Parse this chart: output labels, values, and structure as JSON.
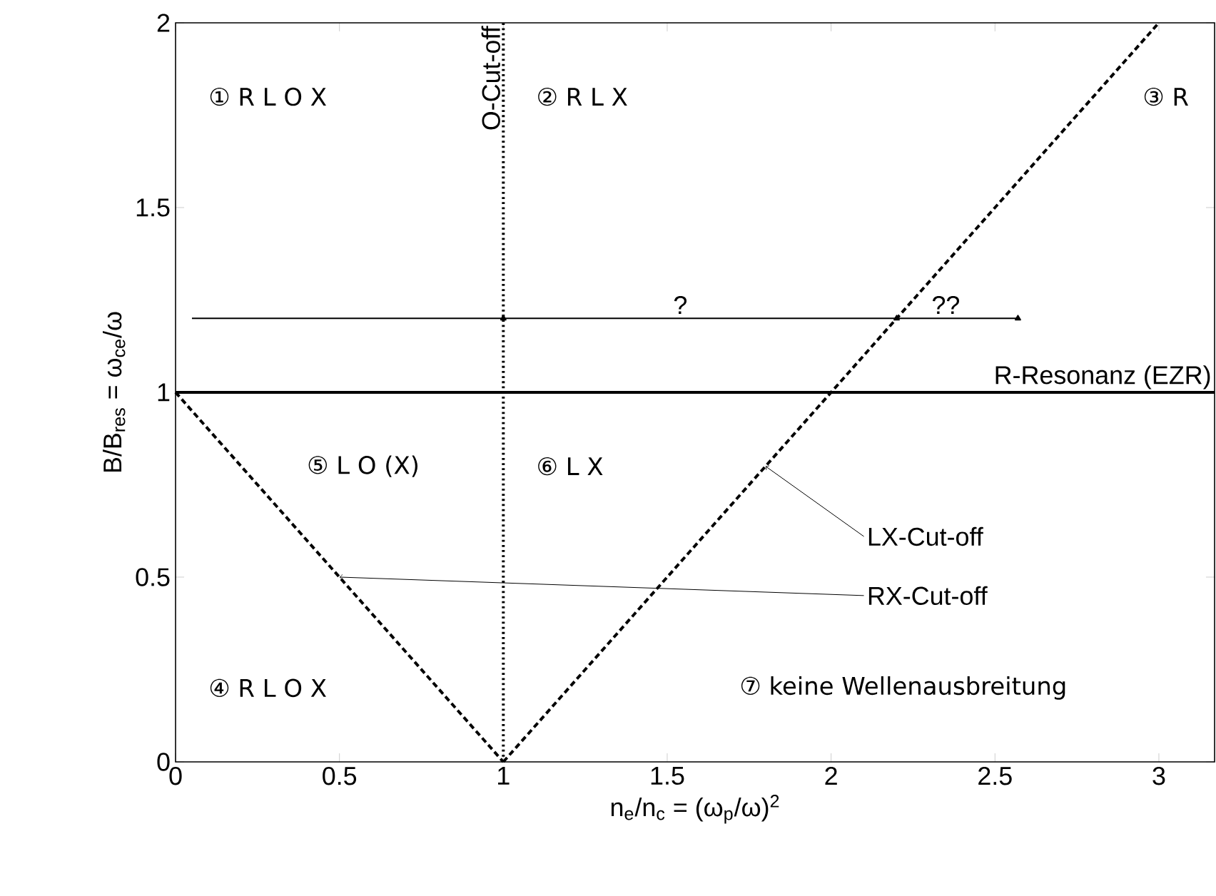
{
  "chart_data": {
    "type": "line",
    "xlabel": "n$_{e}$/n$_{c}$ = (ω$_{p}$/ω)$^{2}$",
    "ylabel": "B/B$_{res}$ = ω$_{ce}$/ω",
    "xlim": [
      0,
      3.17
    ],
    "ylim": [
      0,
      2
    ],
    "xticks": [
      0,
      0.5,
      1,
      1.5,
      2,
      2.5,
      3
    ],
    "yticks": [
      0,
      0.5,
      1,
      1.5,
      2
    ],
    "series": [
      {
        "x": [
          0,
          1
        ],
        "values": [
          1,
          0
        ],
        "color": "#000000",
        "line_style": "dashed"
      },
      {
        "x": [
          1,
          3
        ],
        "values": [
          0,
          2
        ],
        "color": "#000000",
        "line_style": "dashed"
      },
      {
        "x": [
          0.05,
          1,
          2.2,
          2.57
        ],
        "values": [
          1.2,
          1.2,
          1.2,
          1.2
        ],
        "color": "#000000",
        "marker": "triangle",
        "line_style": "solid"
      }
    ],
    "ref_lines": [
      {
        "axis": "x",
        "value": 1,
        "label": "O-Cut-off",
        "line_style": "dotted"
      },
      {
        "axis": "y",
        "value": 1,
        "label": "R-Resonanz (EZR)",
        "line_style": "solid"
      }
    ],
    "annotations": [
      "① R L O X",
      "② R L X",
      "③ R",
      "④ R L O X",
      "⑤ L O (X)",
      "⑥ L X",
      "⑦ keine Wellenausbreitung",
      {
        "text": "?",
        "x": 1.54,
        "y": 1.2
      },
      {
        "text": "??",
        "x": 2.35,
        "y": 1.2
      },
      {
        "text": "RX-Cut-off",
        "x": 0.5,
        "y": 0.5
      },
      {
        "text": "LX-Cut-off",
        "x": 1.8,
        "y": 0.8
      }
    ]
  }
}
